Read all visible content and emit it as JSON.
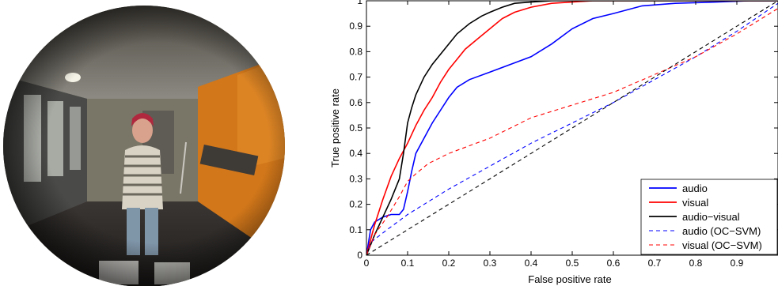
{
  "chart_data": {
    "type": "line",
    "title": "",
    "xlabel": "False positive rate",
    "ylabel": "True positive rate",
    "xlim": [
      0,
      1
    ],
    "ylim": [
      0,
      1
    ],
    "xticks": [
      0,
      0.1,
      0.2,
      0.3,
      0.4,
      0.5,
      0.6,
      0.7,
      0.8,
      0.9
    ],
    "yticks": [
      0,
      0.1,
      0.2,
      0.3,
      0.4,
      0.5,
      0.6,
      0.7,
      0.8,
      0.9,
      1
    ],
    "x_tick_labels": [
      "0",
      "0.1",
      "0.2",
      "0.3",
      "0.4",
      "0.5",
      "0.6",
      "0.7",
      "0.8",
      "0.9"
    ],
    "y_tick_labels": [
      "0",
      "0.1",
      "0.2",
      "0.3",
      "0.4",
      "0.5",
      "0.6",
      "0.7",
      "0.8",
      "0.9",
      "1"
    ],
    "grid": false,
    "legend_position": "bottom-right",
    "series": [
      {
        "name": "audio",
        "color": "#0000ff",
        "dash": "solid",
        "x": [
          0,
          0.01,
          0.02,
          0.04,
          0.06,
          0.08,
          0.09,
          0.1,
          0.11,
          0.12,
          0.14,
          0.16,
          0.18,
          0.2,
          0.22,
          0.25,
          0.3,
          0.35,
          0.4,
          0.45,
          0.5,
          0.55,
          0.6,
          0.67,
          0.75,
          0.85,
          0.93,
          1.0
        ],
        "y": [
          0,
          0.1,
          0.13,
          0.15,
          0.16,
          0.16,
          0.18,
          0.25,
          0.33,
          0.4,
          0.46,
          0.52,
          0.57,
          0.62,
          0.66,
          0.69,
          0.72,
          0.75,
          0.78,
          0.83,
          0.89,
          0.93,
          0.95,
          0.98,
          0.99,
          0.995,
          1.0,
          1.0
        ]
      },
      {
        "name": "visual",
        "color": "#ff0000",
        "dash": "solid",
        "x": [
          0,
          0.02,
          0.04,
          0.06,
          0.08,
          0.1,
          0.12,
          0.14,
          0.16,
          0.18,
          0.2,
          0.22,
          0.24,
          0.27,
          0.3,
          0.33,
          0.36,
          0.4,
          0.45,
          0.5,
          0.55,
          0.6,
          0.7,
          0.8,
          1.0
        ],
        "y": [
          0,
          0.12,
          0.22,
          0.31,
          0.38,
          0.44,
          0.51,
          0.57,
          0.62,
          0.68,
          0.73,
          0.77,
          0.81,
          0.85,
          0.89,
          0.93,
          0.955,
          0.975,
          0.99,
          0.995,
          1.0,
          1.0,
          1.0,
          1.0,
          1.0
        ]
      },
      {
        "name": "audio−visual",
        "color": "#000000",
        "dash": "solid",
        "x": [
          0,
          0.02,
          0.04,
          0.06,
          0.08,
          0.09,
          0.1,
          0.11,
          0.12,
          0.14,
          0.16,
          0.18,
          0.2,
          0.22,
          0.25,
          0.28,
          0.3,
          0.33,
          0.36,
          0.4,
          0.45,
          0.5,
          0.6,
          0.8,
          1.0
        ],
        "y": [
          0,
          0.08,
          0.15,
          0.22,
          0.3,
          0.4,
          0.52,
          0.58,
          0.63,
          0.7,
          0.75,
          0.79,
          0.83,
          0.87,
          0.91,
          0.94,
          0.955,
          0.975,
          0.99,
          0.995,
          1.0,
          1.0,
          1.0,
          1.0,
          1.0
        ]
      },
      {
        "name": "audio (OC−SVM)",
        "color": "#0000ff",
        "dash": "dashed",
        "x": [
          0,
          0.01,
          0.05,
          0.1,
          0.2,
          0.3,
          0.4,
          0.5,
          0.6,
          0.7,
          0.8,
          0.9,
          1.0
        ],
        "y": [
          0,
          0.05,
          0.1,
          0.16,
          0.26,
          0.35,
          0.44,
          0.52,
          0.6,
          0.69,
          0.78,
          0.88,
          0.99
        ]
      },
      {
        "name": "visual (OC−SVM)",
        "color": "#ff0000",
        "dash": "dashed",
        "x": [
          0,
          0.02,
          0.05,
          0.08,
          0.1,
          0.12,
          0.15,
          0.2,
          0.25,
          0.3,
          0.35,
          0.4,
          0.5,
          0.6,
          0.7,
          0.8,
          0.9,
          1.0
        ],
        "y": [
          0,
          0.08,
          0.15,
          0.23,
          0.29,
          0.32,
          0.36,
          0.4,
          0.43,
          0.46,
          0.5,
          0.54,
          0.59,
          0.64,
          0.71,
          0.78,
          0.87,
          0.97
        ]
      },
      {
        "name": "",
        "color": "#000000",
        "dash": "dashed",
        "x": [
          0,
          1
        ],
        "y": [
          0,
          1
        ]
      }
    ]
  }
}
